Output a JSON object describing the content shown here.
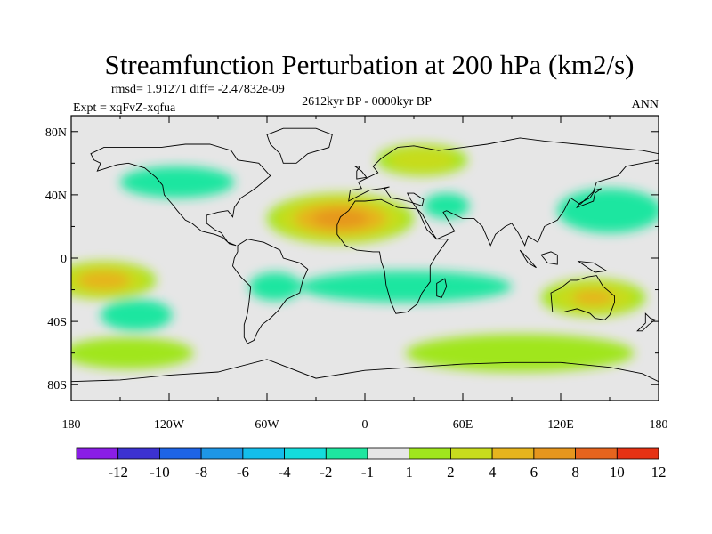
{
  "chart_data": {
    "type": "heatmap",
    "title": "Streamfunction Perturbation at 200 hPa (km2/s)",
    "stats_text": "rmsd= 1.91271 diff= -2.47832e-09",
    "experiment_text": "Expt = xqFvZ-xqfua",
    "period_text": "2612kyr BP - 0000kyr BP",
    "season_text": "ANN",
    "xlim": [
      -180,
      180
    ],
    "ylim": [
      -90,
      90
    ],
    "x_ticks": [
      {
        "value": -180,
        "label": "180"
      },
      {
        "value": -120,
        "label": "120W"
      },
      {
        "value": -60,
        "label": "60W"
      },
      {
        "value": 0,
        "label": "0"
      },
      {
        "value": 60,
        "label": "60E"
      },
      {
        "value": 120,
        "label": "120E"
      },
      {
        "value": 180,
        "label": "180"
      }
    ],
    "y_ticks": [
      {
        "value": 80,
        "label": "80N"
      },
      {
        "value": 40,
        "label": "40N"
      },
      {
        "value": 0,
        "label": "0"
      },
      {
        "value": -40,
        "label": "40S"
      },
      {
        "value": -80,
        "label": "80S"
      }
    ],
    "colorbar": {
      "boundaries": [
        "-12",
        "-10",
        "-8",
        "-6",
        "-4",
        "-2",
        "-1",
        "1",
        "2",
        "4",
        "6",
        "8",
        "10",
        "12"
      ],
      "colors": [
        "#8a1ee6",
        "#3c32d2",
        "#1e64e6",
        "#1e96e6",
        "#14beeb",
        "#14dcdc",
        "#1ee6a0",
        "#e6e6e6",
        "#a0e61e",
        "#c8dc1e",
        "#e6b41e",
        "#e6961e",
        "#e6641e",
        "#e63214"
      ]
    },
    "regions": [
      {
        "name": "equatorial-africa-max",
        "lon": -15,
        "lat": 25,
        "rlon": 45,
        "rlat": 16,
        "value": 7
      },
      {
        "name": "east-pacific-south-max",
        "lon": -160,
        "lat": -14,
        "rlon": 32,
        "rlat": 12,
        "value": 5
      },
      {
        "name": "australia-max",
        "lon": 140,
        "lat": -25,
        "rlon": 32,
        "rlat": 12,
        "value": 4
      },
      {
        "name": "north-pacific-east-min",
        "lon": 150,
        "lat": 30,
        "rlon": 32,
        "rlat": 14,
        "value": -6
      },
      {
        "name": "south-indian-ocean-min",
        "lon": 25,
        "lat": -18,
        "rlon": 65,
        "rlat": 10,
        "value": -3
      },
      {
        "name": "south-pacific-min",
        "lon": -140,
        "lat": -36,
        "rlon": 22,
        "rlat": 10,
        "value": -3
      },
      {
        "name": "south-america-min",
        "lon": -55,
        "lat": -18,
        "rlon": 16,
        "rlat": 9,
        "value": -3
      },
      {
        "name": "north-atlantic-min",
        "lon": -115,
        "lat": 48,
        "rlon": 35,
        "rlat": 10,
        "value": -1.5
      },
      {
        "name": "north-africa-min",
        "lon": 50,
        "lat": 33,
        "rlon": 14,
        "rlat": 8,
        "value": -2
      },
      {
        "name": "siberia-max",
        "lon": 35,
        "lat": 62,
        "rlon": 28,
        "rlat": 10,
        "value": 3
      },
      {
        "name": "southern-ocean-max",
        "lon": 95,
        "lat": -60,
        "rlon": 70,
        "rlat": 12,
        "value": 1.5
      },
      {
        "name": "south-atlantic-max",
        "lon": -145,
        "lat": -60,
        "rlon": 40,
        "rlat": 10,
        "value": 1.5
      }
    ]
  }
}
